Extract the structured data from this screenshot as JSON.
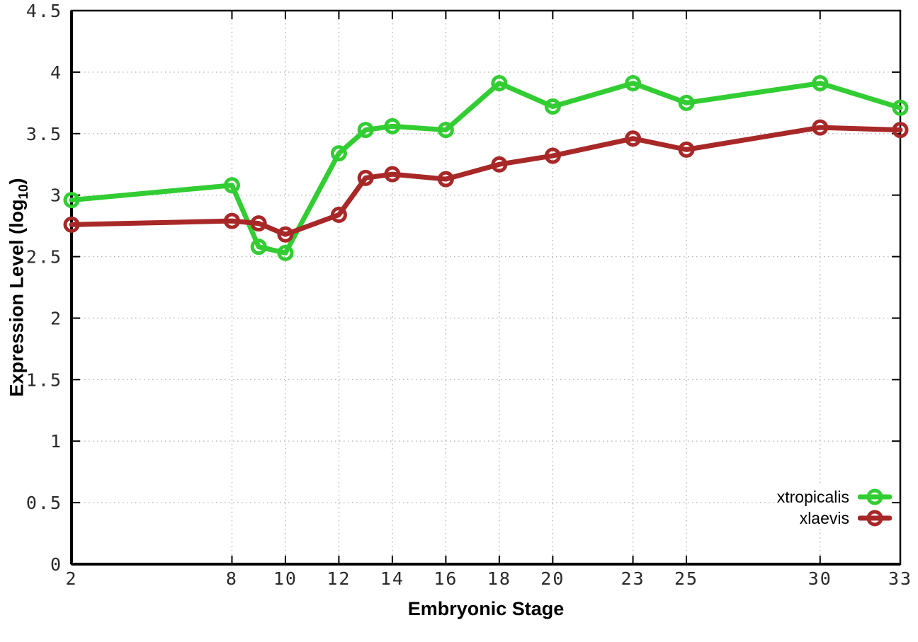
{
  "chart_data": {
    "type": "line",
    "title": "",
    "xlabel": "Embryonic Stage",
    "ylabel": {
      "pre": "Expression Level (log",
      "sub": "10",
      "post": ")"
    },
    "xlim": [
      2,
      33
    ],
    "ylim": [
      0,
      4.5
    ],
    "grid": true,
    "grid_style": "dotted",
    "legend_position": "bottom-right",
    "x": [
      2,
      8,
      9,
      10,
      12,
      13,
      14,
      16,
      18,
      20,
      23,
      25,
      30,
      33
    ],
    "xticks": [
      2,
      8,
      10,
      12,
      14,
      16,
      18,
      20,
      23,
      25,
      30,
      33
    ],
    "yticks": [
      "0",
      "0.5",
      "1",
      "1.5",
      "2",
      "2.5",
      "3",
      "3.5",
      "4",
      "4.5"
    ],
    "series": [
      {
        "name": "xtropicalis",
        "color": "#32cd32",
        "values": [
          2.96,
          3.08,
          2.58,
          2.53,
          3.34,
          3.53,
          3.56,
          3.53,
          3.91,
          3.72,
          3.91,
          3.75,
          3.91,
          3.71
        ]
      },
      {
        "name": "xlaevis",
        "color": "#a82828",
        "values": [
          2.76,
          2.79,
          2.77,
          2.68,
          2.84,
          3.14,
          3.17,
          3.13,
          3.25,
          3.32,
          3.46,
          3.37,
          3.55,
          3.53
        ]
      }
    ]
  }
}
